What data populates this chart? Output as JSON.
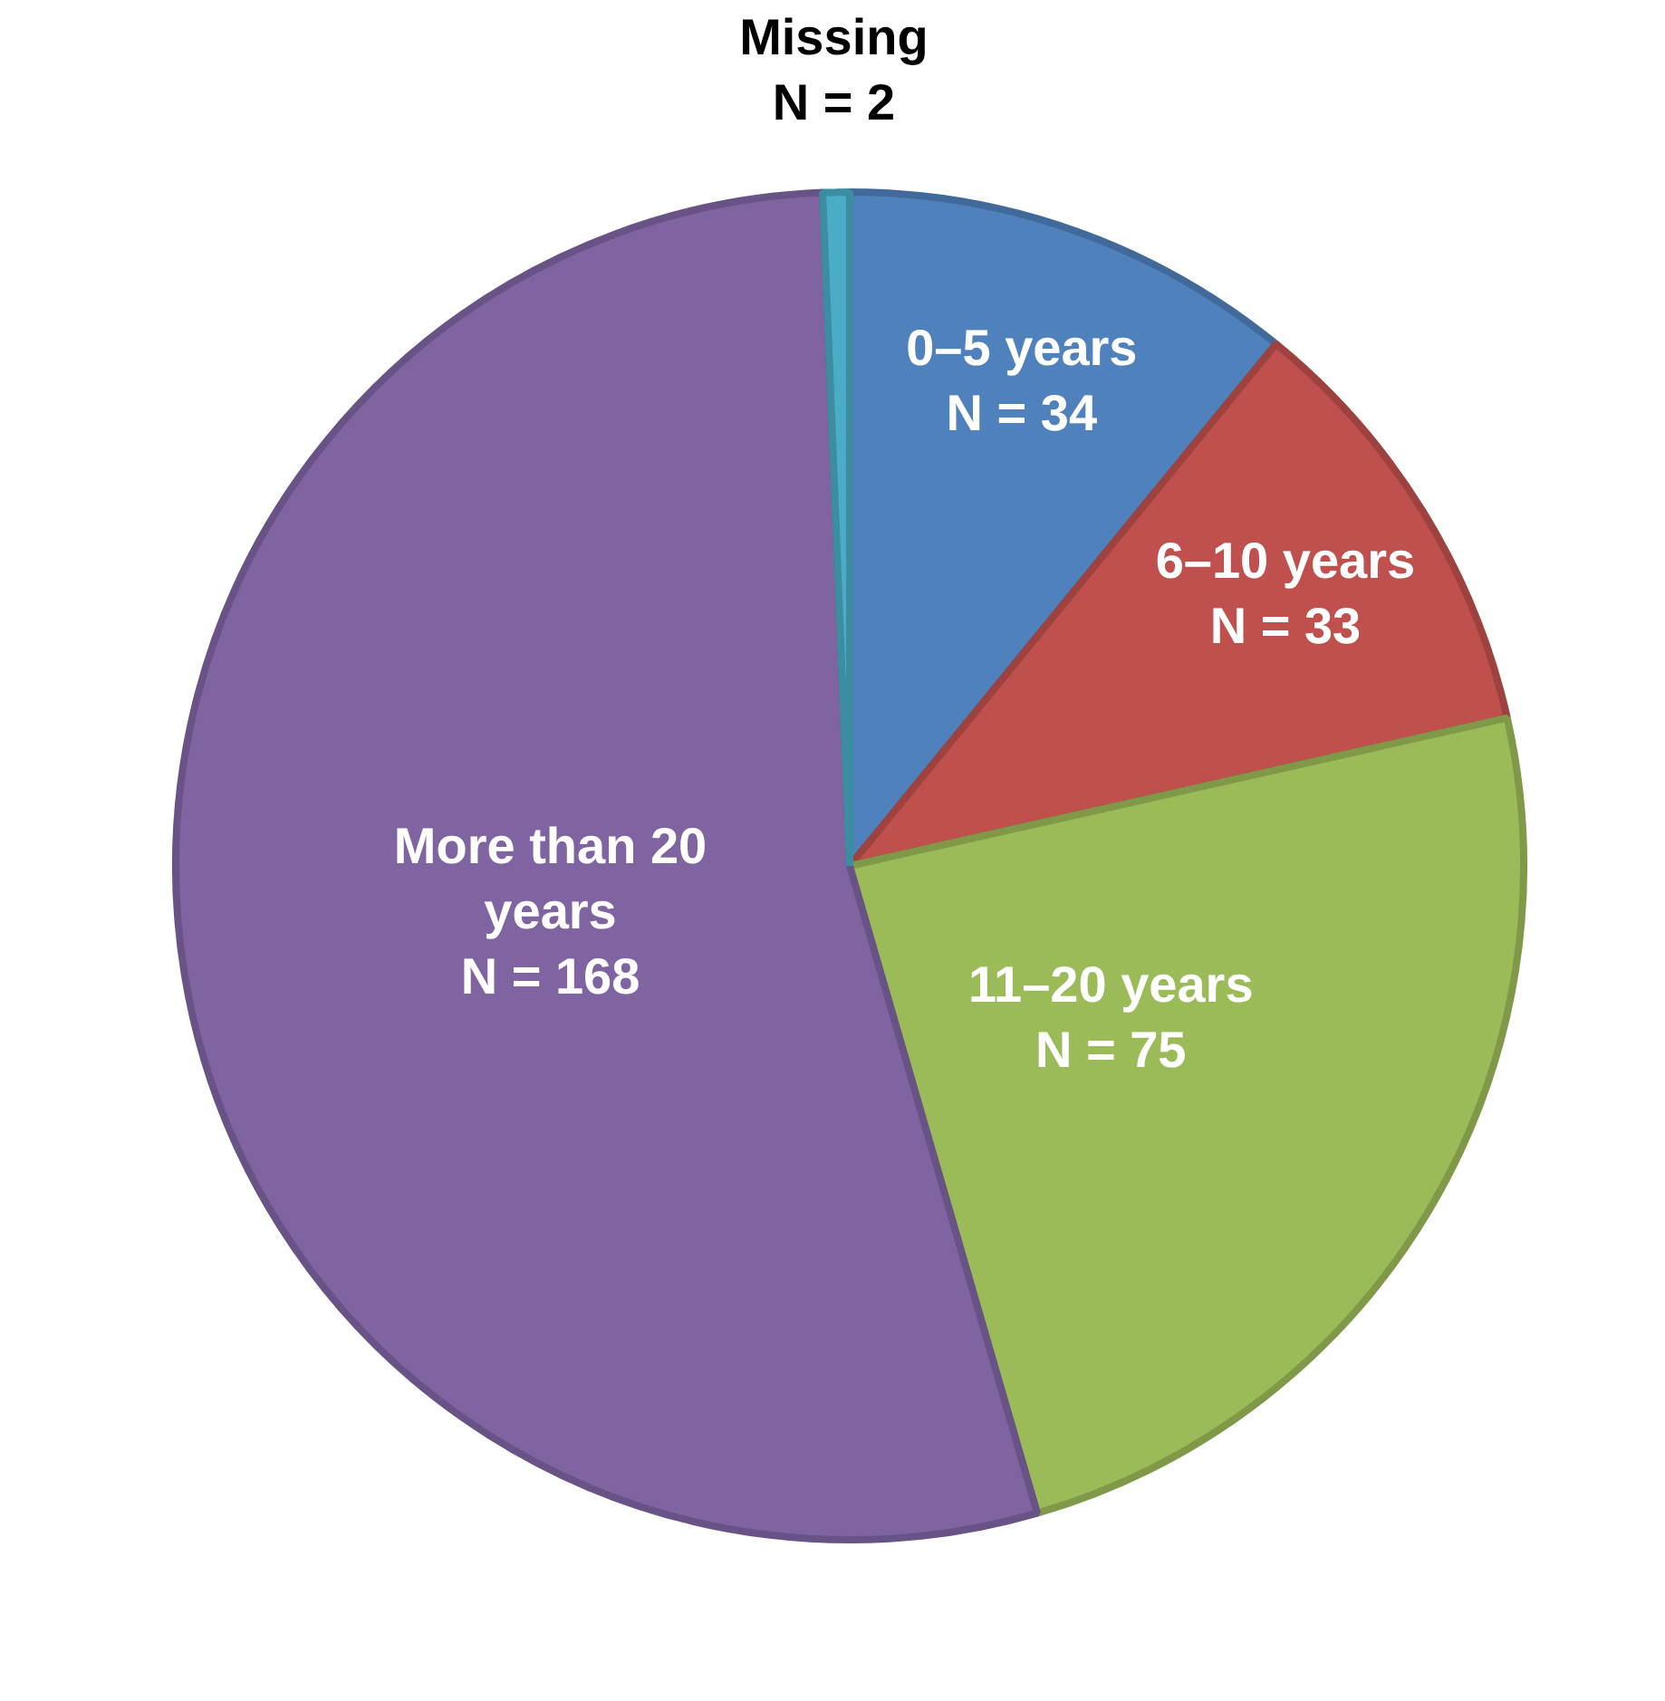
{
  "chart_data": {
    "type": "pie",
    "categories": [
      "0–5 years",
      "6–10 years",
      "11–20 years",
      "More than 20 years",
      "Missing"
    ],
    "values": [
      34,
      33,
      75,
      168,
      2
    ],
    "value_labels": [
      "N = 34",
      "N = 33",
      "N = 75",
      "N = 168",
      "N = 2"
    ],
    "colors": [
      "#4f81bd",
      "#c0504d",
      "#9bbb59",
      "#8064a2",
      "#4bacc6"
    ],
    "legend": false
  }
}
